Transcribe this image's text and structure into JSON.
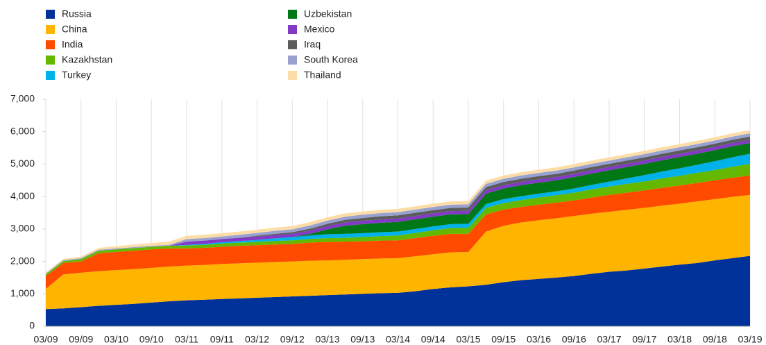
{
  "chart_data": {
    "type": "stacked_area",
    "categories": [
      "03/09",
      null,
      "09/09",
      null,
      "03/10",
      null,
      "09/10",
      null,
      "03/11",
      null,
      "09/11",
      null,
      "03/12",
      null,
      "09/12",
      null,
      "03/13",
      null,
      "09/13",
      null,
      "03/14",
      null,
      "09/14",
      null,
      "03/15",
      null,
      "09/15",
      null,
      "03/16",
      null,
      "09/16",
      null,
      "03/17",
      null,
      "09/17",
      null,
      "03/18",
      null,
      "09/18",
      null,
      "03/19"
    ],
    "ylim": [
      0,
      7000
    ],
    "yticks": [
      0,
      {
        "value": 1000,
        "label": "1,000"
      },
      {
        "value": 2000,
        "label": "2,000"
      },
      {
        "value": 3000,
        "label": "3,000"
      },
      {
        "value": 4000,
        "label": "4,000"
      },
      {
        "value": 5000,
        "label": "5,000"
      },
      {
        "value": 6000,
        "label": "6,000"
      },
      {
        "value": 7000,
        "label": "7,000"
      }
    ],
    "grid": true,
    "legend": "top-left",
    "series": [
      {
        "name": "Russia",
        "color": "#003299",
        "values": [
          530,
          550,
          590,
          630,
          660,
          690,
          730,
          770,
          800,
          820,
          840,
          860,
          880,
          900,
          920,
          940,
          960,
          980,
          1000,
          1020,
          1030,
          1080,
          1150,
          1200,
          1230,
          1280,
          1360,
          1420,
          1460,
          1500,
          1550,
          1620,
          1680,
          1720,
          1780,
          1840,
          1900,
          1950,
          2030,
          2100,
          2170
        ]
      },
      {
        "name": "China",
        "color": "#ffb400",
        "values": [
          620,
          1050,
          1060,
          1070,
          1070,
          1070,
          1070,
          1070,
          1070,
          1070,
          1080,
          1080,
          1080,
          1080,
          1080,
          1080,
          1070,
          1070,
          1070,
          1070,
          1070,
          1080,
          1070,
          1080,
          1060,
          1640,
          1740,
          1780,
          1810,
          1830,
          1850,
          1850,
          1850,
          1870,
          1870,
          1880,
          1880,
          1900,
          1890,
          1890,
          1880
        ]
      },
      {
        "name": "India",
        "color": "#ff4b00",
        "values": [
          400,
          350,
          350,
          550,
          560,
          570,
          570,
          560,
          530,
          530,
          530,
          540,
          540,
          540,
          540,
          560,
          570,
          560,
          550,
          550,
          550,
          560,
          570,
          570,
          560,
          530,
          500,
          480,
          480,
          480,
          480,
          500,
          520,
          530,
          540,
          550,
          560,
          570,
          580,
          590,
          600
        ]
      },
      {
        "name": "Kazakhstan",
        "color": "#65b800",
        "values": [
          50,
          60,
          70,
          80,
          80,
          80,
          80,
          80,
          90,
          90,
          100,
          100,
          100,
          110,
          110,
          110,
          120,
          120,
          130,
          140,
          150,
          160,
          170,
          180,
          190,
          200,
          200,
          210,
          220,
          230,
          240,
          250,
          260,
          270,
          280,
          290,
          300,
          310,
          320,
          340,
          360
        ]
      },
      {
        "name": "Turkey",
        "color": "#00b1ea",
        "values": [
          0,
          0,
          0,
          0,
          0,
          0,
          0,
          0,
          20,
          30,
          40,
          50,
          60,
          80,
          100,
          110,
          120,
          120,
          120,
          120,
          120,
          120,
          120,
          120,
          120,
          120,
          120,
          120,
          120,
          120,
          130,
          140,
          150,
          170,
          190,
          210,
          230,
          250,
          270,
          290,
          310
        ]
      },
      {
        "name": "Uzbekistan",
        "color": "#007816",
        "values": [
          0,
          0,
          0,
          0,
          0,
          0,
          0,
          0,
          0,
          0,
          0,
          0,
          0,
          0,
          0,
          50,
          150,
          250,
          280,
          290,
          300,
          300,
          300,
          300,
          300,
          320,
          330,
          340,
          340,
          340,
          350,
          350,
          350,
          350,
          350,
          350,
          350,
          340,
          340,
          340,
          330
        ]
      },
      {
        "name": "Mexico",
        "color": "#8139c6",
        "values": [
          0,
          0,
          0,
          0,
          0,
          0,
          0,
          0,
          100,
          100,
          100,
          100,
          100,
          100,
          100,
          100,
          100,
          100,
          100,
          100,
          100,
          100,
          100,
          100,
          100,
          100,
          100,
          100,
          100,
          100,
          100,
          100,
          100,
          100,
          100,
          100,
          100,
          100,
          100,
          100,
          100
        ]
      },
      {
        "name": "Iraq",
        "color": "#5c5c5c",
        "values": [
          0,
          0,
          0,
          0,
          0,
          0,
          0,
          0,
          0,
          0,
          0,
          0,
          30,
          40,
          50,
          60,
          70,
          80,
          90,
          100,
          100,
          100,
          100,
          100,
          100,
          100,
          100,
          100,
          100,
          100,
          100,
          100,
          100,
          100,
          100,
          100,
          100,
          100,
          100,
          100,
          100
        ]
      },
      {
        "name": "South Korea",
        "color": "#98a1d0",
        "values": [
          30,
          30,
          30,
          30,
          30,
          30,
          30,
          30,
          80,
          80,
          80,
          90,
          90,
          90,
          90,
          100,
          100,
          100,
          100,
          100,
          100,
          100,
          100,
          100,
          100,
          100,
          100,
          100,
          100,
          100,
          100,
          100,
          100,
          100,
          100,
          100,
          100,
          100,
          100,
          100,
          100
        ]
      },
      {
        "name": "Thailand",
        "color": "#fddda7",
        "values": [
          30,
          40,
          50,
          60,
          70,
          80,
          90,
          100,
          100,
          100,
          100,
          100,
          100,
          100,
          100,
          100,
          100,
          100,
          100,
          100,
          100,
          100,
          100,
          100,
          100,
          100,
          100,
          100,
          100,
          100,
          100,
          100,
          100,
          100,
          100,
          100,
          100,
          100,
          100,
          100,
          100
        ]
      }
    ]
  }
}
